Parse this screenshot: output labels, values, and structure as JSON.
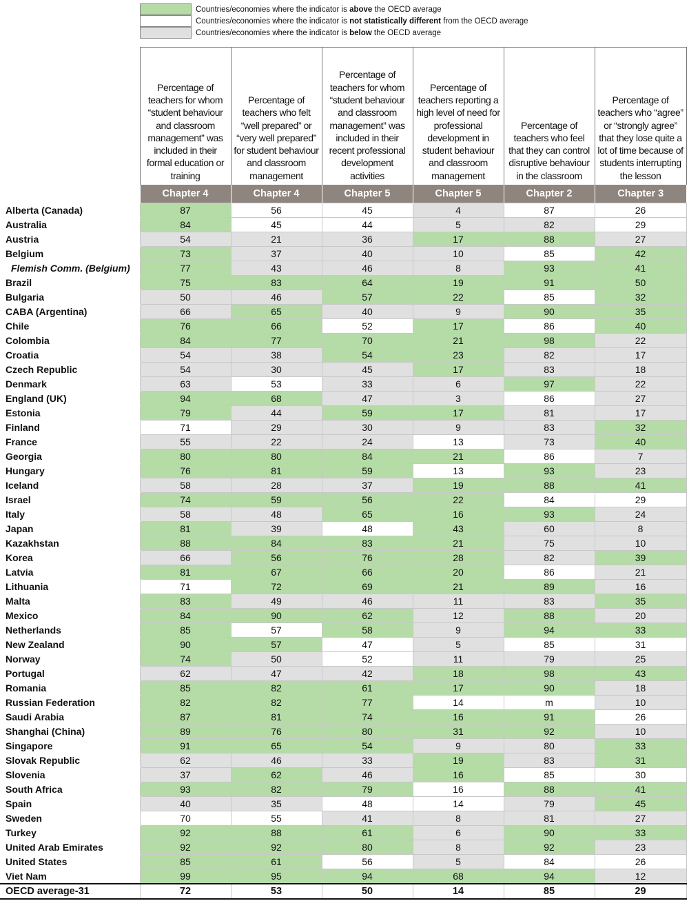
{
  "legend": [
    {
      "color": "#b5dba7",
      "text": [
        "Countries/economies where the indicator is ",
        "above",
        " the OECD average"
      ]
    },
    {
      "color": "#ffffff",
      "text": [
        "Countries/economies where the indicator is ",
        "not statistically different",
        " from the OECD average"
      ]
    },
    {
      "color": "#e0e0e0",
      "text": [
        "Countries/economies where the indicator is ",
        "below",
        " the OECD average"
      ]
    }
  ],
  "table": {
    "headers": [
      "Percentage of teachers for whom “student behaviour and classroom management” was included in their formal education or training",
      "Percentage of teachers who felt “well prepared” or “very well prepared” for student behaviour and classroom management",
      "Percentage of teachers for whom “student behaviour and classroom management” was included in their recent professional development activities",
      "Percentage of teachers reporting a high level of need for professional development in student behaviour and classroom management",
      "Percentage of teachers who feel that they can control disruptive behaviour in the classroom",
      "Percentage of teachers who “agree” or “strongly agree” that they lose quite a lot of time because of students interrupting the lesson"
    ],
    "chapters": [
      "Chapter 4",
      "Chapter 4",
      "Chapter 5",
      "Chapter 5",
      "Chapter 2",
      "Chapter 3"
    ],
    "rows": [
      {
        "name": "Alberta (Canada)",
        "values": [
          87,
          56,
          45,
          4,
          87,
          26
        ],
        "status": [
          0,
          1,
          1,
          2,
          1,
          1
        ]
      },
      {
        "name": "Australia",
        "values": [
          84,
          45,
          44,
          5,
          82,
          29
        ],
        "status": [
          0,
          1,
          1,
          2,
          2,
          1
        ]
      },
      {
        "name": "Austria",
        "values": [
          54,
          21,
          36,
          17,
          88,
          27
        ],
        "status": [
          2,
          2,
          2,
          0,
          0,
          2
        ]
      },
      {
        "name": "Belgium",
        "values": [
          73,
          37,
          40,
          10,
          85,
          42
        ],
        "status": [
          0,
          2,
          2,
          2,
          1,
          0
        ]
      },
      {
        "name": "Flemish Comm. (Belgium)",
        "values": [
          77,
          43,
          46,
          8,
          93,
          41
        ],
        "status": [
          0,
          2,
          2,
          2,
          0,
          0
        ],
        "sub": true
      },
      {
        "name": "Brazil",
        "values": [
          75,
          83,
          64,
          19,
          91,
          50
        ],
        "status": [
          0,
          0,
          0,
          0,
          0,
          0
        ]
      },
      {
        "name": "Bulgaria",
        "values": [
          50,
          46,
          57,
          22,
          85,
          32
        ],
        "status": [
          2,
          2,
          0,
          0,
          1,
          0
        ]
      },
      {
        "name": "CABA (Argentina)",
        "values": [
          66,
          65,
          40,
          9,
          90,
          35
        ],
        "status": [
          2,
          0,
          2,
          2,
          0,
          0
        ]
      },
      {
        "name": "Chile",
        "values": [
          76,
          66,
          52,
          17,
          86,
          40
        ],
        "status": [
          0,
          0,
          1,
          0,
          1,
          0
        ]
      },
      {
        "name": "Colombia",
        "values": [
          84,
          77,
          70,
          21,
          98,
          22
        ],
        "status": [
          0,
          0,
          0,
          0,
          0,
          2
        ]
      },
      {
        "name": "Croatia",
        "values": [
          54,
          38,
          54,
          23,
          82,
          17
        ],
        "status": [
          2,
          2,
          0,
          0,
          2,
          2
        ]
      },
      {
        "name": "Czech Republic",
        "values": [
          54,
          30,
          45,
          17,
          83,
          18
        ],
        "status": [
          2,
          2,
          2,
          0,
          2,
          2
        ]
      },
      {
        "name": "Denmark",
        "values": [
          63,
          53,
          33,
          6,
          97,
          22
        ],
        "status": [
          2,
          1,
          2,
          2,
          0,
          2
        ]
      },
      {
        "name": "England (UK)",
        "values": [
          94,
          68,
          47,
          3,
          86,
          27
        ],
        "status": [
          0,
          0,
          2,
          2,
          1,
          2
        ]
      },
      {
        "name": "Estonia",
        "values": [
          79,
          44,
          59,
          17,
          81,
          17
        ],
        "status": [
          0,
          2,
          0,
          0,
          2,
          2
        ]
      },
      {
        "name": "Finland",
        "values": [
          71,
          29,
          30,
          9,
          83,
          32
        ],
        "status": [
          1,
          2,
          2,
          2,
          2,
          0
        ]
      },
      {
        "name": "France",
        "values": [
          55,
          22,
          24,
          13,
          73,
          40
        ],
        "status": [
          2,
          2,
          2,
          1,
          2,
          0
        ]
      },
      {
        "name": "Georgia",
        "values": [
          80,
          80,
          84,
          21,
          86,
          7
        ],
        "status": [
          0,
          0,
          0,
          0,
          1,
          2
        ]
      },
      {
        "name": "Hungary",
        "values": [
          76,
          81,
          59,
          13,
          93,
          23
        ],
        "status": [
          0,
          0,
          0,
          1,
          0,
          2
        ]
      },
      {
        "name": "Iceland",
        "values": [
          58,
          28,
          37,
          19,
          88,
          41
        ],
        "status": [
          2,
          2,
          2,
          0,
          0,
          0
        ]
      },
      {
        "name": "Israel",
        "values": [
          74,
          59,
          56,
          22,
          84,
          29
        ],
        "status": [
          0,
          0,
          0,
          0,
          1,
          1
        ]
      },
      {
        "name": "Italy",
        "values": [
          58,
          48,
          65,
          16,
          93,
          24
        ],
        "status": [
          2,
          2,
          0,
          0,
          0,
          2
        ]
      },
      {
        "name": "Japan",
        "values": [
          81,
          39,
          48,
          43,
          60,
          8
        ],
        "status": [
          0,
          2,
          1,
          0,
          2,
          2
        ]
      },
      {
        "name": "Kazakhstan",
        "values": [
          88,
          84,
          83,
          21,
          75,
          10
        ],
        "status": [
          0,
          0,
          0,
          0,
          2,
          2
        ]
      },
      {
        "name": "Korea",
        "values": [
          66,
          56,
          76,
          28,
          82,
          39
        ],
        "status": [
          2,
          0,
          0,
          0,
          2,
          0
        ]
      },
      {
        "name": "Latvia",
        "values": [
          81,
          67,
          66,
          20,
          86,
          21
        ],
        "status": [
          0,
          0,
          0,
          0,
          1,
          2
        ]
      },
      {
        "name": "Lithuania",
        "values": [
          71,
          72,
          69,
          21,
          89,
          16
        ],
        "status": [
          1,
          0,
          0,
          0,
          0,
          2
        ]
      },
      {
        "name": "Malta",
        "values": [
          83,
          49,
          46,
          11,
          83,
          35
        ],
        "status": [
          0,
          2,
          2,
          2,
          2,
          0
        ]
      },
      {
        "name": "Mexico",
        "values": [
          84,
          90,
          62,
          12,
          88,
          20
        ],
        "status": [
          0,
          0,
          0,
          2,
          0,
          2
        ]
      },
      {
        "name": "Netherlands",
        "values": [
          85,
          57,
          58,
          9,
          94,
          33
        ],
        "status": [
          0,
          1,
          0,
          2,
          0,
          0
        ]
      },
      {
        "name": "New Zealand",
        "values": [
          90,
          57,
          47,
          5,
          85,
          31
        ],
        "status": [
          0,
          0,
          1,
          2,
          1,
          1
        ]
      },
      {
        "name": "Norway",
        "values": [
          74,
          50,
          52,
          11,
          79,
          25
        ],
        "status": [
          0,
          2,
          1,
          2,
          2,
          2
        ]
      },
      {
        "name": "Portugal",
        "values": [
          62,
          47,
          42,
          18,
          98,
          43
        ],
        "status": [
          2,
          2,
          2,
          0,
          0,
          0
        ]
      },
      {
        "name": "Romania",
        "values": [
          85,
          82,
          61,
          17,
          90,
          18
        ],
        "status": [
          0,
          0,
          0,
          0,
          0,
          2
        ]
      },
      {
        "name": "Russian Federation",
        "values": [
          82,
          82,
          77,
          14,
          "m",
          10
        ],
        "status": [
          0,
          0,
          0,
          1,
          1,
          2
        ]
      },
      {
        "name": "Saudi Arabia",
        "values": [
          87,
          81,
          74,
          16,
          91,
          26
        ],
        "status": [
          0,
          0,
          0,
          0,
          0,
          1
        ]
      },
      {
        "name": "Shanghai (China)",
        "values": [
          89,
          76,
          80,
          31,
          92,
          10
        ],
        "status": [
          0,
          0,
          0,
          0,
          0,
          2
        ]
      },
      {
        "name": "Singapore",
        "values": [
          91,
          65,
          54,
          9,
          80,
          33
        ],
        "status": [
          0,
          0,
          0,
          2,
          2,
          0
        ]
      },
      {
        "name": "Slovak Republic",
        "values": [
          62,
          46,
          33,
          19,
          83,
          31
        ],
        "status": [
          2,
          2,
          2,
          0,
          2,
          0
        ]
      },
      {
        "name": "Slovenia",
        "values": [
          37,
          62,
          46,
          16,
          85,
          30
        ],
        "status": [
          2,
          0,
          2,
          0,
          1,
          1
        ]
      },
      {
        "name": "South Africa",
        "values": [
          93,
          82,
          79,
          16,
          88,
          41
        ],
        "status": [
          0,
          0,
          0,
          1,
          0,
          0
        ]
      },
      {
        "name": "Spain",
        "values": [
          40,
          35,
          48,
          14,
          79,
          45
        ],
        "status": [
          2,
          2,
          1,
          1,
          2,
          0
        ]
      },
      {
        "name": "Sweden",
        "values": [
          70,
          55,
          41,
          8,
          81,
          27
        ],
        "status": [
          1,
          1,
          2,
          2,
          2,
          2
        ]
      },
      {
        "name": "Turkey",
        "values": [
          92,
          88,
          61,
          6,
          90,
          33
        ],
        "status": [
          0,
          0,
          0,
          2,
          0,
          0
        ]
      },
      {
        "name": "United Arab Emirates",
        "values": [
          92,
          92,
          80,
          8,
          92,
          23
        ],
        "status": [
          0,
          0,
          0,
          2,
          0,
          2
        ]
      },
      {
        "name": "United States",
        "values": [
          85,
          61,
          56,
          5,
          84,
          26
        ],
        "status": [
          0,
          0,
          1,
          2,
          1,
          1
        ]
      },
      {
        "name": "Viet Nam",
        "values": [
          99,
          95,
          94,
          68,
          94,
          12
        ],
        "status": [
          0,
          0,
          0,
          0,
          0,
          2
        ]
      }
    ],
    "average": {
      "name": "OECD average-31",
      "values": [
        72,
        53,
        50,
        14,
        85,
        29
      ]
    }
  }
}
